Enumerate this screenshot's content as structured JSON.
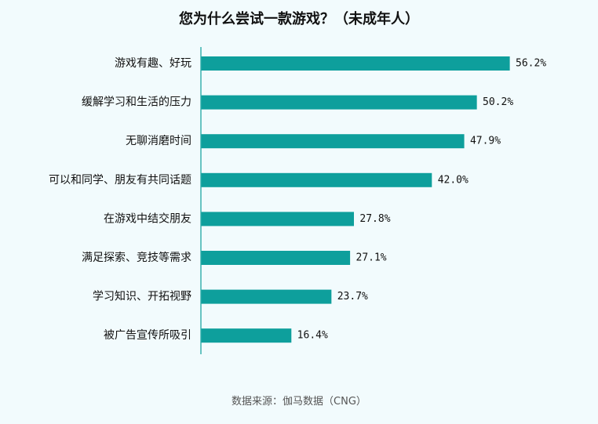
{
  "source_text": "数据来源：伽马数据（CNG）",
  "chart_data": {
    "type": "bar",
    "orientation": "horizontal",
    "title": "您为什么尝试一款游戏？（未成年人）",
    "categories": [
      "游戏有趣、好玩",
      "缓解学习和生活的压力",
      "无聊消磨时间",
      "可以和同学、朋友有共同话题",
      "在游戏中结交朋友",
      "满足探索、竞技等需求",
      "学习知识、开拓视野",
      "被广告宣传所吸引"
    ],
    "values": [
      56.2,
      50.2,
      47.9,
      42.0,
      27.8,
      27.1,
      23.7,
      16.4
    ],
    "value_labels": [
      "56.2%",
      "50.2%",
      "47.9%",
      "42.0%",
      "27.8%",
      "27.1%",
      "23.7%",
      "16.4%"
    ],
    "unit": "%",
    "xlim": [
      0,
      56.2
    ],
    "bar_color": "#0e9f9c",
    "axis_color": "#0e9f9c",
    "grid": false,
    "legend": "none"
  }
}
